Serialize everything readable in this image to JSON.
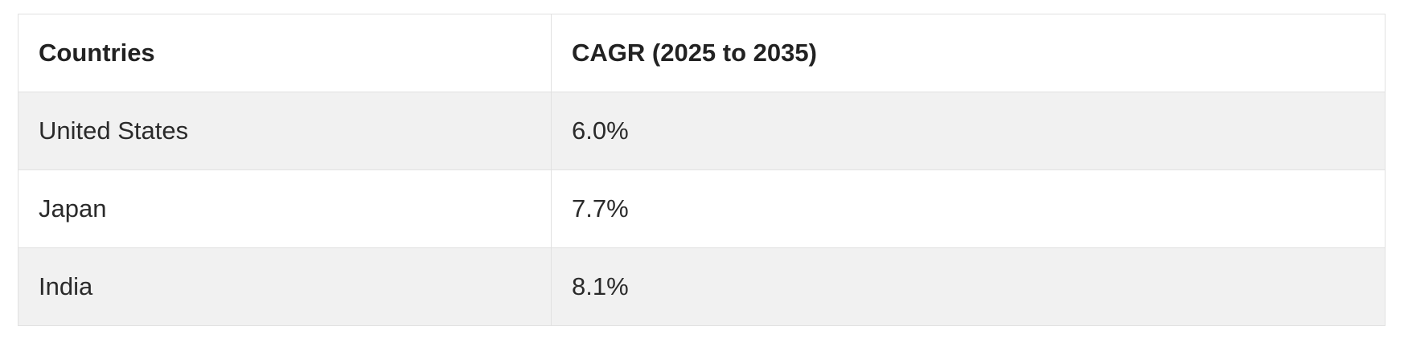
{
  "table": {
    "headers": [
      "Countries",
      "CAGR (2025 to 2035)"
    ],
    "rows": [
      [
        "United States",
        "6.0%"
      ],
      [
        "Japan",
        "7.7%"
      ],
      [
        "India",
        "8.1%"
      ]
    ]
  },
  "colors": {
    "border": "#e1e1e1",
    "stripe": "#f1f1f1",
    "text": "#222222"
  }
}
